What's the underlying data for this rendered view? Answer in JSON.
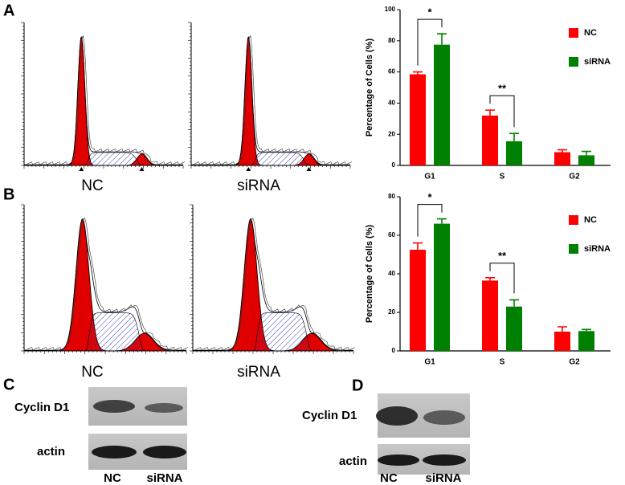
{
  "panel_labels": [
    "A",
    "B",
    "C",
    "D"
  ],
  "histograms": {
    "A": [
      "NC",
      "siRNA"
    ],
    "B": [
      "NC",
      "siRNA"
    ]
  },
  "chart_data": [
    {
      "type": "bar",
      "ylabel": "Percentage of Cells (%)",
      "categories": [
        "G1",
        "S",
        "G2"
      ],
      "series": [
        {
          "name": "NC",
          "color": "#ff0000",
          "values": [
            58.5,
            32,
            8.5
          ],
          "errors": [
            1.5,
            3.5,
            1.5
          ]
        },
        {
          "name": "siRNA",
          "color": "#008000",
          "values": [
            77.5,
            15.5,
            6.5
          ],
          "errors": [
            7,
            5,
            2.5
          ]
        }
      ],
      "ylim": [
        0,
        100
      ],
      "yticks": [
        0,
        20,
        40,
        60,
        80,
        100
      ],
      "annotations": [
        "*",
        "**"
      ],
      "legend": "upper right"
    },
    {
      "type": "bar",
      "ylabel": "Percentage of Cells (%)",
      "categories": [
        "G1",
        "S",
        "G2"
      ],
      "series": [
        {
          "name": "NC",
          "color": "#ff0000",
          "values": [
            52.5,
            36.5,
            10
          ],
          "errors": [
            3.5,
            1.5,
            2.5
          ]
        },
        {
          "name": "siRNA",
          "color": "#008000",
          "values": [
            66,
            23,
            10.3
          ],
          "errors": [
            2.5,
            3.5,
            0.8
          ]
        }
      ],
      "ylim": [
        0,
        80
      ],
      "yticks": [
        0,
        20,
        40,
        60,
        80
      ],
      "annotations": [
        "*",
        "**"
      ],
      "legend": "upper right"
    }
  ],
  "blots": {
    "C": {
      "rows": [
        "Cyclin D1",
        "actin"
      ],
      "lanes": [
        "NC",
        "siRNA"
      ]
    },
    "D": {
      "rows": [
        "Cyclin D1",
        "actin"
      ],
      "lanes": [
        "NC",
        "siRNA"
      ]
    }
  }
}
